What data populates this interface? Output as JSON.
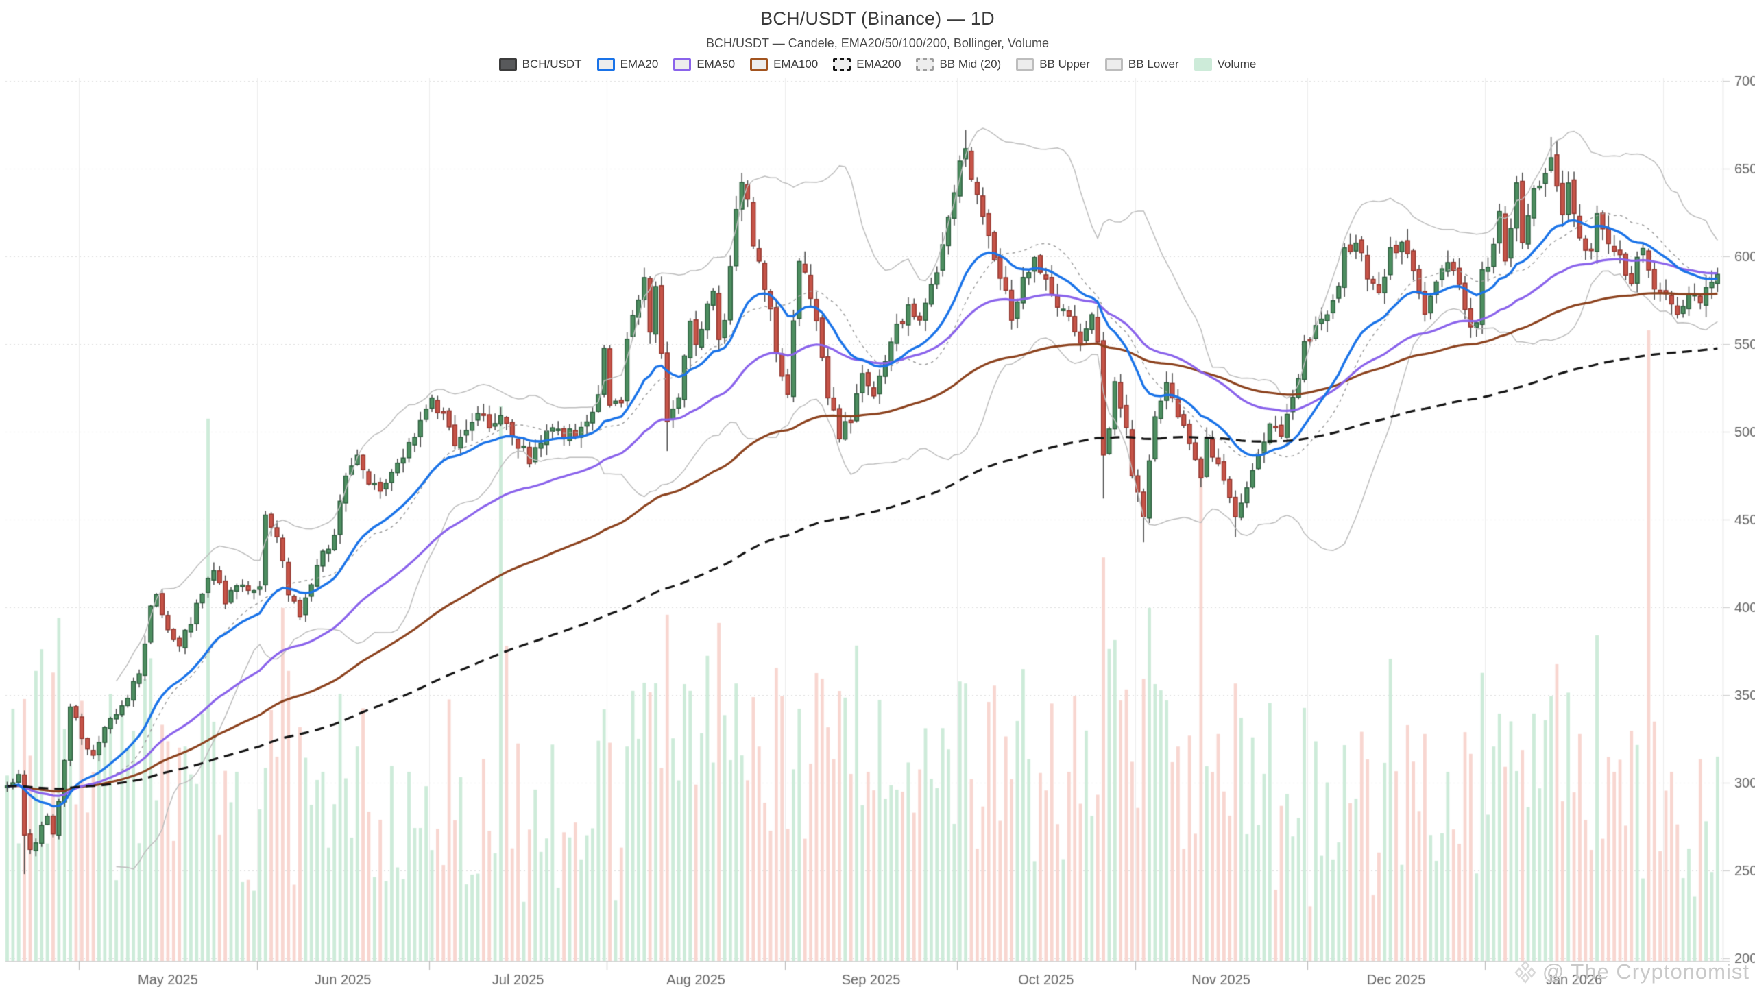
{
  "header": {
    "title": "BCH/USDT (Binance) — 1D",
    "subtitle": "BCH/USDT — Candele, EMA20/50/100/200, Bollinger, Volume"
  },
  "watermark": {
    "text": "@ The Cryptonomist"
  },
  "legend": [
    {
      "label": "BCH/USDT",
      "swatch": {
        "fill": "#58595b",
        "border": "#3c3c3c",
        "dash": false
      }
    },
    {
      "label": "EMA20",
      "swatch": {
        "fill": "#ededed",
        "border": "#1a73e8",
        "dash": false
      }
    },
    {
      "label": "EMA50",
      "swatch": {
        "fill": "#ededed",
        "border": "#8a63eb",
        "dash": false
      }
    },
    {
      "label": "EMA100",
      "swatch": {
        "fill": "#ededed",
        "border": "#a2541f",
        "dash": false
      }
    },
    {
      "label": "EMA200",
      "swatch": {
        "fill": "#ededed",
        "border": "#141414",
        "dash": true
      }
    },
    {
      "label": "BB Mid (20)",
      "swatch": {
        "fill": "#ededed",
        "border": "#9e9e9e",
        "dash": true
      }
    },
    {
      "label": "BB Upper",
      "swatch": {
        "fill": "#ededed",
        "border": "#bdbdbd",
        "dash": false
      }
    },
    {
      "label": "BB Lower",
      "swatch": {
        "fill": "#ededed",
        "border": "#bdbdbd",
        "dash": false
      }
    },
    {
      "label": "Volume",
      "swatch": {
        "fill": "#cdebd9",
        "border": "#cdebd9",
        "dash": false
      }
    }
  ],
  "chart_data": {
    "type": "candlestick",
    "pair": "BCH/USDT",
    "exchange": "Binance",
    "timeframe": "1D",
    "title": "BCH/USDT (Binance) — 1D",
    "y_axis": {
      "min": 200,
      "max": 700,
      "step": 50,
      "side": "right",
      "ticks": [
        700,
        650,
        600,
        550,
        500,
        450,
        400,
        350,
        300,
        250,
        200
      ]
    },
    "x_axis": {
      "start_date": "2025-04-18",
      "candle_count": 299,
      "month_ticks": [
        {
          "label": "May 2025",
          "day": 13
        },
        {
          "label": "Jun 2025",
          "day": 44
        },
        {
          "label": "Jul 2025",
          "day": 74
        },
        {
          "label": "Aug 2025",
          "day": 105
        },
        {
          "label": "Sep 2025",
          "day": 136
        },
        {
          "label": "Oct 2025",
          "day": 166
        },
        {
          "label": "Nov 2025",
          "day": 197
        },
        {
          "label": "Dec 2025",
          "day": 227
        },
        {
          "label": "Jan 2026",
          "day": 258
        }
      ],
      "extra_boundary_day": 289
    },
    "indicators": {
      "ema_periods": [
        20,
        50,
        100,
        200
      ],
      "bollinger": {
        "period": 20,
        "stddev": 2
      }
    },
    "grid": {
      "horizontal": "dotted",
      "vertical": "month-lines"
    },
    "seed": 11,
    "price_anchors": [
      [
        0,
        298
      ],
      [
        2,
        304
      ],
      [
        3,
        271
      ],
      [
        4,
        262
      ],
      [
        5,
        266
      ],
      [
        6,
        276
      ],
      [
        7,
        281
      ],
      [
        8,
        270
      ],
      [
        9,
        290
      ],
      [
        10,
        313
      ],
      [
        11,
        343
      ],
      [
        12,
        338
      ],
      [
        13,
        323
      ],
      [
        15,
        317
      ],
      [
        17,
        331
      ],
      [
        19,
        338
      ],
      [
        21,
        350
      ],
      [
        23,
        361
      ],
      [
        25,
        398
      ],
      [
        26,
        408
      ],
      [
        28,
        386
      ],
      [
        30,
        378
      ],
      [
        32,
        392
      ],
      [
        34,
        410
      ],
      [
        36,
        420
      ],
      [
        38,
        405
      ],
      [
        40,
        414
      ],
      [
        42,
        408
      ],
      [
        43,
        410
      ],
      [
        44,
        413
      ],
      [
        45,
        452
      ],
      [
        46,
        447
      ],
      [
        47,
        440
      ],
      [
        48,
        425
      ],
      [
        49,
        408
      ],
      [
        51,
        394
      ],
      [
        53,
        414
      ],
      [
        55,
        432
      ],
      [
        57,
        440
      ],
      [
        59,
        478
      ],
      [
        61,
        490
      ],
      [
        63,
        472
      ],
      [
        65,
        465
      ],
      [
        67,
        478
      ],
      [
        69,
        485
      ],
      [
        71,
        500
      ],
      [
        73,
        515
      ],
      [
        74,
        522
      ],
      [
        76,
        508
      ],
      [
        78,
        495
      ],
      [
        80,
        502
      ],
      [
        82,
        512
      ],
      [
        84,
        505
      ],
      [
        86,
        510
      ],
      [
        88,
        498
      ],
      [
        90,
        490
      ],
      [
        91,
        484
      ],
      [
        93,
        495
      ],
      [
        95,
        505
      ],
      [
        97,
        500
      ],
      [
        99,
        497
      ],
      [
        101,
        505
      ],
      [
        103,
        520
      ],
      [
        104,
        546
      ],
      [
        105,
        517
      ],
      [
        107,
        514
      ],
      [
        108,
        555
      ],
      [
        111,
        587
      ],
      [
        112,
        555
      ],
      [
        113,
        587
      ],
      [
        114,
        545
      ],
      [
        115,
        506
      ],
      [
        117,
        522
      ],
      [
        119,
        560
      ],
      [
        120,
        552
      ],
      [
        123,
        580
      ],
      [
        124,
        555
      ],
      [
        125,
        562
      ],
      [
        127,
        628
      ],
      [
        128,
        640
      ],
      [
        129,
        635
      ],
      [
        130,
        608
      ],
      [
        133,
        570
      ],
      [
        134,
        545
      ],
      [
        135,
        528
      ],
      [
        136,
        525
      ],
      [
        138,
        600
      ],
      [
        140,
        575
      ],
      [
        141,
        562
      ],
      [
        143,
        520
      ],
      [
        145,
        498
      ],
      [
        147,
        508
      ],
      [
        149,
        532
      ],
      [
        151,
        520
      ],
      [
        153,
        538
      ],
      [
        155,
        560
      ],
      [
        157,
        570
      ],
      [
        159,
        562
      ],
      [
        161,
        585
      ],
      [
        163,
        605
      ],
      [
        165,
        635
      ],
      [
        166,
        650
      ],
      [
        167,
        660
      ],
      [
        168,
        648
      ],
      [
        170,
        622
      ],
      [
        172,
        600
      ],
      [
        174,
        580
      ],
      [
        175,
        562
      ],
      [
        177,
        585
      ],
      [
        179,
        600
      ],
      [
        181,
        588
      ],
      [
        183,
        572
      ],
      [
        185,
        566
      ],
      [
        187,
        552
      ],
      [
        189,
        565
      ],
      [
        190,
        550
      ],
      [
        191,
        485
      ],
      [
        192,
        505
      ],
      [
        193,
        525
      ],
      [
        195,
        500
      ],
      [
        196,
        478
      ],
      [
        198,
        455
      ],
      [
        200,
        510
      ],
      [
        202,
        528
      ],
      [
        204,
        510
      ],
      [
        206,
        490
      ],
      [
        208,
        472
      ],
      [
        209,
        498
      ],
      [
        211,
        480
      ],
      [
        213,
        462
      ],
      [
        214,
        452
      ],
      [
        216,
        468
      ],
      [
        218,
        488
      ],
      [
        220,
        505
      ],
      [
        222,
        498
      ],
      [
        224,
        520
      ],
      [
        226,
        548
      ],
      [
        227,
        552
      ],
      [
        229,
        562
      ],
      [
        231,
        575
      ],
      [
        233,
        600
      ],
      [
        235,
        607
      ],
      [
        237,
        588
      ],
      [
        239,
        580
      ],
      [
        241,
        600
      ],
      [
        243,
        612
      ],
      [
        245,
        590
      ],
      [
        247,
        568
      ],
      [
        249,
        585
      ],
      [
        251,
        598
      ],
      [
        253,
        580
      ],
      [
        255,
        562
      ],
      [
        256,
        560
      ],
      [
        257,
        593
      ],
      [
        258,
        597
      ],
      [
        260,
        625
      ],
      [
        261,
        601
      ],
      [
        263,
        640
      ],
      [
        264,
        610
      ],
      [
        266,
        638
      ],
      [
        268,
        645
      ],
      [
        269,
        655
      ],
      [
        271,
        625
      ],
      [
        272,
        645
      ],
      [
        274,
        612
      ],
      [
        276,
        601
      ],
      [
        277,
        622
      ],
      [
        279,
        608
      ],
      [
        281,
        600
      ],
      [
        283,
        588
      ],
      [
        285,
        605
      ],
      [
        286,
        590
      ],
      [
        287,
        580
      ],
      [
        289,
        578
      ],
      [
        291,
        565
      ],
      [
        293,
        580
      ],
      [
        295,
        572
      ],
      [
        296,
        585
      ],
      [
        298,
        591
      ]
    ],
    "wick_overrides": [
      [
        3,
        null,
        248
      ],
      [
        115,
        null,
        489
      ],
      [
        167,
        672,
        null
      ],
      [
        191,
        null,
        462
      ],
      [
        198,
        null,
        437
      ],
      [
        214,
        null,
        440
      ],
      [
        269,
        668,
        null
      ]
    ],
    "volume_spikes": [
      [
        1,
        0.4
      ],
      [
        5,
        0.46
      ],
      [
        9,
        0.34
      ],
      [
        15,
        0.3
      ],
      [
        20,
        0.4
      ],
      [
        25,
        0.48
      ],
      [
        31,
        0.34
      ],
      [
        35,
        0.86
      ],
      [
        40,
        0.3
      ],
      [
        48,
        0.56
      ],
      [
        49,
        0.46
      ],
      [
        55,
        0.3
      ],
      [
        61,
        0.34
      ],
      [
        70,
        0.3
      ],
      [
        86,
        0.88
      ],
      [
        87,
        0.5
      ],
      [
        95,
        0.32
      ],
      [
        103,
        0.3
      ],
      [
        108,
        0.34
      ],
      [
        113,
        0.4
      ],
      [
        115,
        0.44
      ],
      [
        121,
        0.3
      ],
      [
        127,
        0.44
      ],
      [
        131,
        0.34
      ],
      [
        138,
        0.4
      ],
      [
        141,
        0.36
      ],
      [
        144,
        0.32
      ],
      [
        150,
        0.3
      ],
      [
        160,
        0.28
      ],
      [
        167,
        0.44
      ],
      [
        172,
        0.3
      ],
      [
        178,
        0.32
      ],
      [
        185,
        0.3
      ],
      [
        191,
        0.64
      ],
      [
        193,
        0.34
      ],
      [
        199,
        0.56
      ],
      [
        204,
        0.34
      ],
      [
        208,
        0.8
      ],
      [
        211,
        0.36
      ],
      [
        214,
        0.44
      ],
      [
        220,
        0.34
      ],
      [
        226,
        0.3
      ],
      [
        233,
        0.32
      ],
      [
        240,
        0.28
      ],
      [
        247,
        0.36
      ],
      [
        251,
        0.3
      ],
      [
        255,
        0.28
      ],
      [
        259,
        0.34
      ],
      [
        262,
        0.38
      ],
      [
        266,
        0.3
      ],
      [
        269,
        0.42
      ],
      [
        274,
        0.36
      ],
      [
        280,
        0.3
      ],
      [
        286,
        1.0
      ],
      [
        290,
        0.3
      ],
      [
        295,
        0.32
      ]
    ],
    "colors": {
      "candle_up_fill": "#4d8e60",
      "candle_up_border": "#2b5c3c",
      "candle_down_fill": "#c65448",
      "candle_down_border": "#92342c",
      "wick": "#4d4d4d",
      "ema20": "#1a73e8",
      "ema50": "#8a63eb",
      "ema100": "#8c421e",
      "ema200": "#141414",
      "bb_band": "#bdbdbd",
      "bb_mid": "#9e9e9e",
      "vol_up": "#cdebd9",
      "vol_down": "#f8d6d0",
      "grid_dotted": "#dedede",
      "month_line": "#ececec",
      "axis_line": "#cfcfcf",
      "tick_label": "#666666"
    }
  }
}
